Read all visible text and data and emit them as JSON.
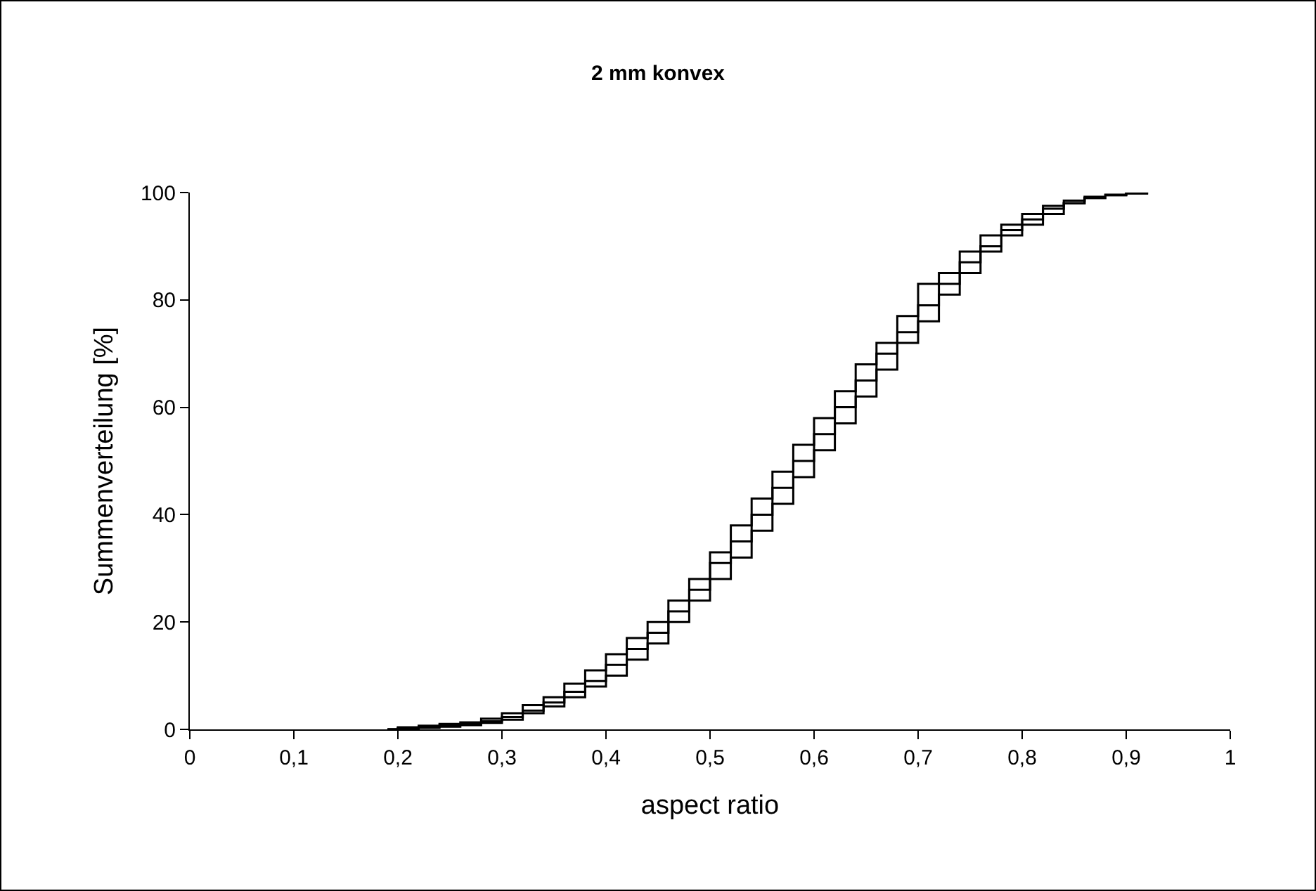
{
  "chart_data": {
    "type": "step",
    "title": "2 mm konvex",
    "xlabel": "aspect ratio",
    "ylabel": "Summenverteilung [%]",
    "x": [
      0.19,
      0.2,
      0.22,
      0.24,
      0.26,
      0.28,
      0.3,
      0.32,
      0.34,
      0.36,
      0.38,
      0.4,
      0.42,
      0.44,
      0.46,
      0.48,
      0.5,
      0.52,
      0.54,
      0.56,
      0.58,
      0.6,
      0.62,
      0.64,
      0.66,
      0.68,
      0.7,
      0.72,
      0.74,
      0.76,
      0.78,
      0.8,
      0.82,
      0.84,
      0.86,
      0.88,
      0.9,
      0.92
    ],
    "series": [
      {
        "color": "#000000",
        "values": [
          0,
          0.3,
          0.5,
          0.8,
          1,
          1.5,
          2.3,
          3.5,
          5,
          7,
          9,
          12,
          15,
          18,
          22,
          26,
          31,
          35,
          40,
          45,
          50,
          55,
          60,
          65,
          70,
          74,
          79,
          83,
          87,
          90,
          93,
          95,
          97,
          98,
          99,
          99.5,
          99.8,
          100
        ]
      },
      {
        "color": "#000000",
        "values": [
          0,
          0.2,
          0.3,
          0.5,
          0.8,
          1.2,
          1.8,
          3,
          4.3,
          6,
          8,
          10,
          13,
          16,
          20,
          24,
          28,
          32,
          37,
          42,
          47,
          52,
          57,
          62,
          67,
          72,
          76,
          81,
          85,
          89,
          92,
          94,
          96,
          98,
          99,
          99.5,
          99.8,
          100
        ]
      },
      {
        "color": "#000000",
        "values": [
          0,
          0.4,
          0.7,
          1,
          1.3,
          2,
          3,
          4.5,
          6,
          8.5,
          11,
          14,
          17,
          20,
          24,
          28,
          33,
          38,
          43,
          48,
          53,
          58,
          63,
          68,
          72,
          77,
          83,
          85,
          89,
          92,
          94,
          96,
          97.5,
          98.5,
          99.2,
          99.6,
          99.9,
          100
        ]
      }
    ],
    "xlim": [
      0,
      1
    ],
    "xticks": [
      0,
      {
        "value": 0.1,
        "label": "0,1"
      },
      {
        "value": 0.2,
        "label": "0,2"
      },
      {
        "value": 0.3,
        "label": "0,3"
      },
      {
        "value": 0.4,
        "label": "0,4"
      },
      {
        "value": 0.5,
        "label": "0,5"
      },
      {
        "value": 0.6,
        "label": "0,6"
      },
      {
        "value": 0.7,
        "label": "0,7"
      },
      {
        "value": 0.8,
        "label": "0,8"
      },
      {
        "value": 0.9,
        "label": "0,9"
      },
      1
    ],
    "ylim": [
      0,
      100
    ],
    "yticks": [
      0,
      20,
      40,
      60,
      80,
      100
    ],
    "grid": false,
    "marker": "none",
    "line_style": "solid"
  }
}
